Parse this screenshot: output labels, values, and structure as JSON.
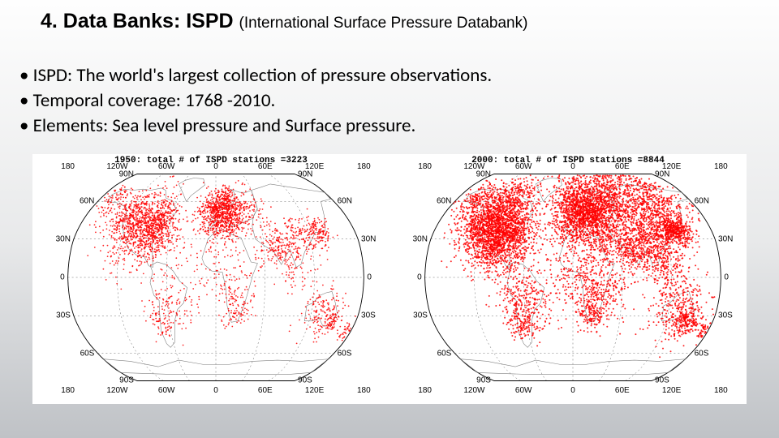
{
  "title_main": "4. Data Banks: ISPD",
  "title_sub": "(International Surface Pressure Databank)",
  "bullets": [
    "ISPD: The world's largest collection of pressure observations.",
    "Temporal coverage: 1768 -2010.",
    "Elements: Sea level pressure and Surface pressure."
  ],
  "maps_common": {
    "lon_ticks": [
      -180,
      -120,
      -60,
      0,
      60,
      120,
      180
    ],
    "lon_labels": [
      "180",
      "120W",
      "60W",
      "0",
      "60E",
      "120E",
      "180"
    ],
    "lat_ticks": [
      90,
      60,
      30,
      0,
      -30,
      -60,
      -90
    ],
    "lat_labels": [
      "90N",
      "60N",
      "30N",
      "0",
      "30S",
      "60S",
      "90S"
    ],
    "outline_color": "#000000",
    "outline_width": 0.9,
    "grid_color": "#000000",
    "grid_width": 0.3,
    "grid_dash": "2 3",
    "land_outline_color": "#808080",
    "land_outline_width": 0.6,
    "dot_color": "#ff0000",
    "dot_opacity": 0.85,
    "background": "#ffffff",
    "axis_font_size": 10,
    "title_font_size": 11
  },
  "panels": [
    {
      "title": "1950:  total # of ISPD stations =3223",
      "dot_radius": 0.9,
      "clusters": [
        {
          "lon": -98,
          "lat": 40,
          "spread": 22,
          "n": 700
        },
        {
          "lon": -80,
          "lat": 34,
          "spread": 14,
          "n": 300
        },
        {
          "lon": -120,
          "lat": 46,
          "spread": 12,
          "n": 180
        },
        {
          "lon": -75,
          "lat": 46,
          "spread": 10,
          "n": 120
        },
        {
          "lon": -155,
          "lat": 61,
          "spread": 10,
          "n": 80
        },
        {
          "lon": 5,
          "lat": 50,
          "spread": 15,
          "n": 500
        },
        {
          "lon": 20,
          "lat": 48,
          "spread": 12,
          "n": 260
        },
        {
          "lon": -2,
          "lat": 54,
          "spread": 5,
          "n": 70
        },
        {
          "lon": 15,
          "lat": 62,
          "spread": 8,
          "n": 80
        },
        {
          "lon": 78,
          "lat": 22,
          "spread": 14,
          "n": 180
        },
        {
          "lon": 135,
          "lat": 36,
          "spread": 8,
          "n": 120
        },
        {
          "lon": 110,
          "lat": 32,
          "spread": 12,
          "n": 120
        },
        {
          "lon": 135,
          "lat": -28,
          "spread": 14,
          "n": 140
        },
        {
          "lon": 150,
          "lat": -34,
          "spread": 6,
          "n": 60
        },
        {
          "lon": 20,
          "lat": -5,
          "spread": 20,
          "n": 120
        },
        {
          "lon": 25,
          "lat": -28,
          "spread": 8,
          "n": 60
        },
        {
          "lon": -58,
          "lat": -22,
          "spread": 15,
          "n": 120
        },
        {
          "lon": -70,
          "lat": -35,
          "spread": 8,
          "n": 40
        },
        {
          "lon": 40,
          "lat": 55,
          "spread": 14,
          "n": 100
        },
        {
          "lon": 175,
          "lat": -40,
          "spread": 6,
          "n": 40
        },
        {
          "lon": -20,
          "lat": 20,
          "spread": 25,
          "n": 60
        },
        {
          "lon": 100,
          "lat": 5,
          "spread": 15,
          "n": 60
        }
      ]
    },
    {
      "title": "2000:  total # of ISPD stations =8844",
      "dot_radius": 1.0,
      "clusters": [
        {
          "lon": -98,
          "lat": 40,
          "spread": 24,
          "n": 1100
        },
        {
          "lon": -80,
          "lat": 32,
          "spread": 15,
          "n": 450
        },
        {
          "lon": -118,
          "lat": 40,
          "spread": 14,
          "n": 350
        },
        {
          "lon": -100,
          "lat": 54,
          "spread": 20,
          "n": 400
        },
        {
          "lon": -150,
          "lat": 62,
          "spread": 12,
          "n": 180
        },
        {
          "lon": 8,
          "lat": 50,
          "spread": 18,
          "n": 1000
        },
        {
          "lon": 30,
          "lat": 52,
          "spread": 18,
          "n": 500
        },
        {
          "lon": 55,
          "lat": 56,
          "spread": 22,
          "n": 500
        },
        {
          "lon": 95,
          "lat": 58,
          "spread": 26,
          "n": 450
        },
        {
          "lon": 135,
          "lat": 58,
          "spread": 20,
          "n": 280
        },
        {
          "lon": 110,
          "lat": 34,
          "spread": 16,
          "n": 400
        },
        {
          "lon": 78,
          "lat": 22,
          "spread": 14,
          "n": 300
        },
        {
          "lon": 138,
          "lat": 37,
          "spread": 8,
          "n": 220
        },
        {
          "lon": 128,
          "lat": 37,
          "spread": 5,
          "n": 120
        },
        {
          "lon": 112,
          "lat": 8,
          "spread": 14,
          "n": 180
        },
        {
          "lon": 135,
          "lat": -26,
          "spread": 18,
          "n": 320
        },
        {
          "lon": 148,
          "lat": -34,
          "spread": 7,
          "n": 120
        },
        {
          "lon": 175,
          "lat": -40,
          "spread": 6,
          "n": 60
        },
        {
          "lon": 20,
          "lat": 2,
          "spread": 22,
          "n": 260
        },
        {
          "lon": 30,
          "lat": -15,
          "spread": 16,
          "n": 200
        },
        {
          "lon": 25,
          "lat": -30,
          "spread": 8,
          "n": 100
        },
        {
          "lon": -58,
          "lat": -18,
          "spread": 18,
          "n": 260
        },
        {
          "lon": -65,
          "lat": -36,
          "spread": 10,
          "n": 120
        },
        {
          "lon": -100,
          "lat": 22,
          "spread": 10,
          "n": 160
        },
        {
          "lon": 45,
          "lat": 26,
          "spread": 14,
          "n": 160
        },
        {
          "lon": -30,
          "lat": 15,
          "spread": 30,
          "n": 80
        },
        {
          "lon": 0,
          "lat": 72,
          "spread": 30,
          "n": 80
        }
      ]
    }
  ]
}
